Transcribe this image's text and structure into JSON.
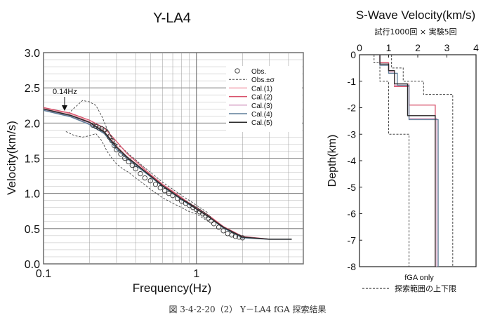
{
  "caption": "図 3-4-2-20（2） Y－LA4 fGA 探索結果",
  "colors": {
    "obs": "#333333",
    "cal1": "#f2a6b2",
    "cal2": "#d8506a",
    "cal3": "#d9a7c8",
    "cal4": "#5f7f9a",
    "cal5": "#2a2a2a",
    "bounds": "#444444"
  },
  "chart_data": [
    {
      "type": "scatter",
      "title": "Y-LA4",
      "xlabel": "Frequency(Hz)",
      "ylabel": "Velocity(km/s)",
      "xscale": "log",
      "xlim": [
        0.1,
        5.0
      ],
      "ylim": [
        0.0,
        3.0
      ],
      "xticks": [
        {
          "v": 0.1,
          "label": "0.1"
        },
        {
          "v": 1,
          "label": "1"
        }
      ],
      "yticks": [
        "0.0",
        "0.5",
        "1.0",
        "1.5",
        "2.0",
        "2.5",
        "3.0"
      ],
      "grid": true,
      "legend_position": "top-right",
      "annotation": {
        "text": "0.14Hz",
        "x": 0.14
      },
      "obs": {
        "name": "Obs.",
        "x": [
          0.21,
          0.22,
          0.23,
          0.24,
          0.25,
          0.26,
          0.27,
          0.28,
          0.29,
          0.3,
          0.32,
          0.34,
          0.36,
          0.38,
          0.4,
          0.43,
          0.46,
          0.5,
          0.54,
          0.58,
          0.62,
          0.66,
          0.7,
          0.75,
          0.8,
          0.85,
          0.9,
          0.95,
          1.0,
          1.05,
          1.1,
          1.15,
          1.2,
          1.25,
          1.3,
          1.4,
          1.5,
          1.6,
          1.7,
          1.8,
          1.9,
          2.0
        ],
        "y": [
          1.97,
          1.95,
          1.93,
          1.92,
          1.9,
          1.86,
          1.8,
          1.75,
          1.68,
          1.62,
          1.56,
          1.5,
          1.45,
          1.4,
          1.35,
          1.28,
          1.22,
          1.18,
          1.13,
          1.08,
          1.04,
          1.0,
          0.97,
          0.93,
          0.89,
          0.86,
          0.83,
          0.8,
          0.77,
          0.74,
          0.71,
          0.68,
          0.65,
          0.61,
          0.57,
          0.52,
          0.47,
          0.43,
          0.41,
          0.39,
          0.38,
          0.37
        ]
      },
      "obs_bounds": {
        "name": "Obs.±σ",
        "x": [
          0.14,
          0.16,
          0.18,
          0.2,
          0.22,
          0.24,
          0.26,
          0.28,
          0.3,
          0.33,
          0.36,
          0.4,
          0.45,
          0.5,
          0.6,
          0.7,
          0.8,
          0.9,
          1.0,
          1.2
        ],
        "upper": [
          2.1,
          2.22,
          2.32,
          2.3,
          2.25,
          2.1,
          1.92,
          1.78,
          1.7,
          1.64,
          1.56,
          1.48,
          1.38,
          1.3,
          1.16,
          1.06,
          0.97,
          0.9,
          0.83,
          0.72
        ],
        "lower": [
          1.88,
          1.82,
          1.8,
          1.82,
          1.85,
          1.75,
          1.6,
          1.5,
          1.42,
          1.35,
          1.3,
          1.22,
          1.14,
          1.06,
          0.94,
          0.86,
          0.8,
          0.74,
          0.71,
          0.6
        ]
      },
      "series": [
        {
          "name": "Cal.(1)",
          "x": [
            0.1,
            0.15,
            0.2,
            0.25,
            0.3,
            0.35,
            0.4,
            0.5,
            0.6,
            0.7,
            0.8,
            0.9,
            1.0,
            1.2,
            1.5,
            2.0,
            3.0,
            4.2
          ],
          "y": [
            2.21,
            2.13,
            2.02,
            1.88,
            1.68,
            1.53,
            1.43,
            1.26,
            1.12,
            1.02,
            0.93,
            0.86,
            0.79,
            0.68,
            0.52,
            0.38,
            0.35,
            0.35
          ]
        },
        {
          "name": "Cal.(2)",
          "x": [
            0.1,
            0.15,
            0.2,
            0.25,
            0.3,
            0.35,
            0.4,
            0.5,
            0.6,
            0.7,
            0.8,
            0.9,
            1.0,
            1.2,
            1.5,
            2.0,
            3.0,
            4.2
          ],
          "y": [
            2.22,
            2.14,
            2.04,
            1.93,
            1.74,
            1.57,
            1.46,
            1.27,
            1.13,
            1.03,
            0.94,
            0.86,
            0.8,
            0.69,
            0.53,
            0.39,
            0.35,
            0.35
          ]
        },
        {
          "name": "Cal.(3)",
          "x": [
            0.1,
            0.15,
            0.2,
            0.25,
            0.3,
            0.35,
            0.4,
            0.5,
            0.6,
            0.7,
            0.8,
            0.9,
            1.0,
            1.2,
            1.5,
            2.0,
            3.0,
            4.2
          ],
          "y": [
            2.19,
            2.1,
            2.0,
            1.87,
            1.66,
            1.52,
            1.42,
            1.25,
            1.11,
            1.01,
            0.92,
            0.85,
            0.78,
            0.67,
            0.52,
            0.38,
            0.35,
            0.35
          ]
        },
        {
          "name": "Cal.(4)",
          "x": [
            0.1,
            0.15,
            0.2,
            0.25,
            0.3,
            0.35,
            0.4,
            0.5,
            0.6,
            0.7,
            0.8,
            0.9,
            1.0,
            1.2,
            1.5,
            2.0,
            3.0,
            4.2
          ],
          "y": [
            2.18,
            2.09,
            1.98,
            1.85,
            1.63,
            1.5,
            1.4,
            1.24,
            1.1,
            1.0,
            0.91,
            0.84,
            0.78,
            0.67,
            0.51,
            0.37,
            0.35,
            0.35
          ]
        },
        {
          "name": "Cal.(5)",
          "x": [
            0.1,
            0.15,
            0.2,
            0.25,
            0.3,
            0.35,
            0.4,
            0.5,
            0.6,
            0.7,
            0.8,
            0.9,
            1.0,
            1.2,
            1.5,
            2.0,
            3.0,
            4.2
          ],
          "y": [
            2.2,
            2.11,
            2.01,
            1.87,
            1.66,
            1.52,
            1.42,
            1.25,
            1.11,
            1.01,
            0.92,
            0.85,
            0.78,
            0.67,
            0.52,
            0.38,
            0.35,
            0.35
          ]
        }
      ]
    },
    {
      "type": "line",
      "title": "S-Wave Velocity(km/s)",
      "subtitle": "試行1000回 × 実験5回",
      "xlabel": "",
      "ylabel": "Depth(km)",
      "xlim": [
        0,
        4
      ],
      "ylim": [
        -8,
        0
      ],
      "xticks": [
        "0",
        "1",
        "2",
        "3",
        "4"
      ],
      "yticks": [
        "0",
        "-1",
        "-2",
        "-3",
        "-4",
        "-5",
        "-6",
        "-7",
        "-8"
      ],
      "grid": false,
      "legend_position": "bottom",
      "legend": [
        {
          "label": "fGA only",
          "style": "none"
        },
        {
          "label": "探索範囲の上下限",
          "style": "dashed"
        }
      ],
      "profiles": [
        {
          "name": "Cal.(1)",
          "vs": [
            0.7,
            1.0,
            1.2,
            1.7,
            2.6
          ],
          "depth_boundaries": [
            0,
            -0.35,
            -0.6,
            -1.1,
            -2.3,
            -8
          ]
        },
        {
          "name": "Cal.(2)",
          "vs": [
            0.7,
            1.0,
            1.2,
            1.7,
            2.6
          ],
          "depth_boundaries": [
            0,
            -0.3,
            -0.6,
            -1.2,
            -1.9,
            -8
          ]
        },
        {
          "name": "Cal.(3)",
          "vs": [
            0.7,
            1.0,
            1.2,
            1.7,
            2.65
          ],
          "depth_boundaries": [
            0,
            -0.35,
            -0.65,
            -1.15,
            -2.4,
            -8
          ]
        },
        {
          "name": "Cal.(4)",
          "vs": [
            0.7,
            1.0,
            1.3,
            1.7,
            2.7
          ],
          "depth_boundaries": [
            0,
            -0.4,
            -0.7,
            -1.15,
            -2.45,
            -8
          ]
        },
        {
          "name": "Cal.(5)",
          "vs": [
            0.7,
            1.0,
            1.2,
            1.65,
            2.6
          ],
          "depth_boundaries": [
            0,
            -0.35,
            -0.6,
            -1.1,
            -2.3,
            -8
          ]
        }
      ],
      "bounds": {
        "lower": {
          "vs": [
            0.5,
            0.7,
            1.0,
            1.7
          ],
          "depth_boundaries": [
            0,
            -0.3,
            -1.0,
            -3.0,
            -8
          ]
        },
        "upper": {
          "vs": [
            1.1,
            1.5,
            2.2,
            3.2
          ],
          "depth_boundaries": [
            0,
            -0.5,
            -1.0,
            -1.5,
            -8
          ]
        }
      }
    }
  ]
}
